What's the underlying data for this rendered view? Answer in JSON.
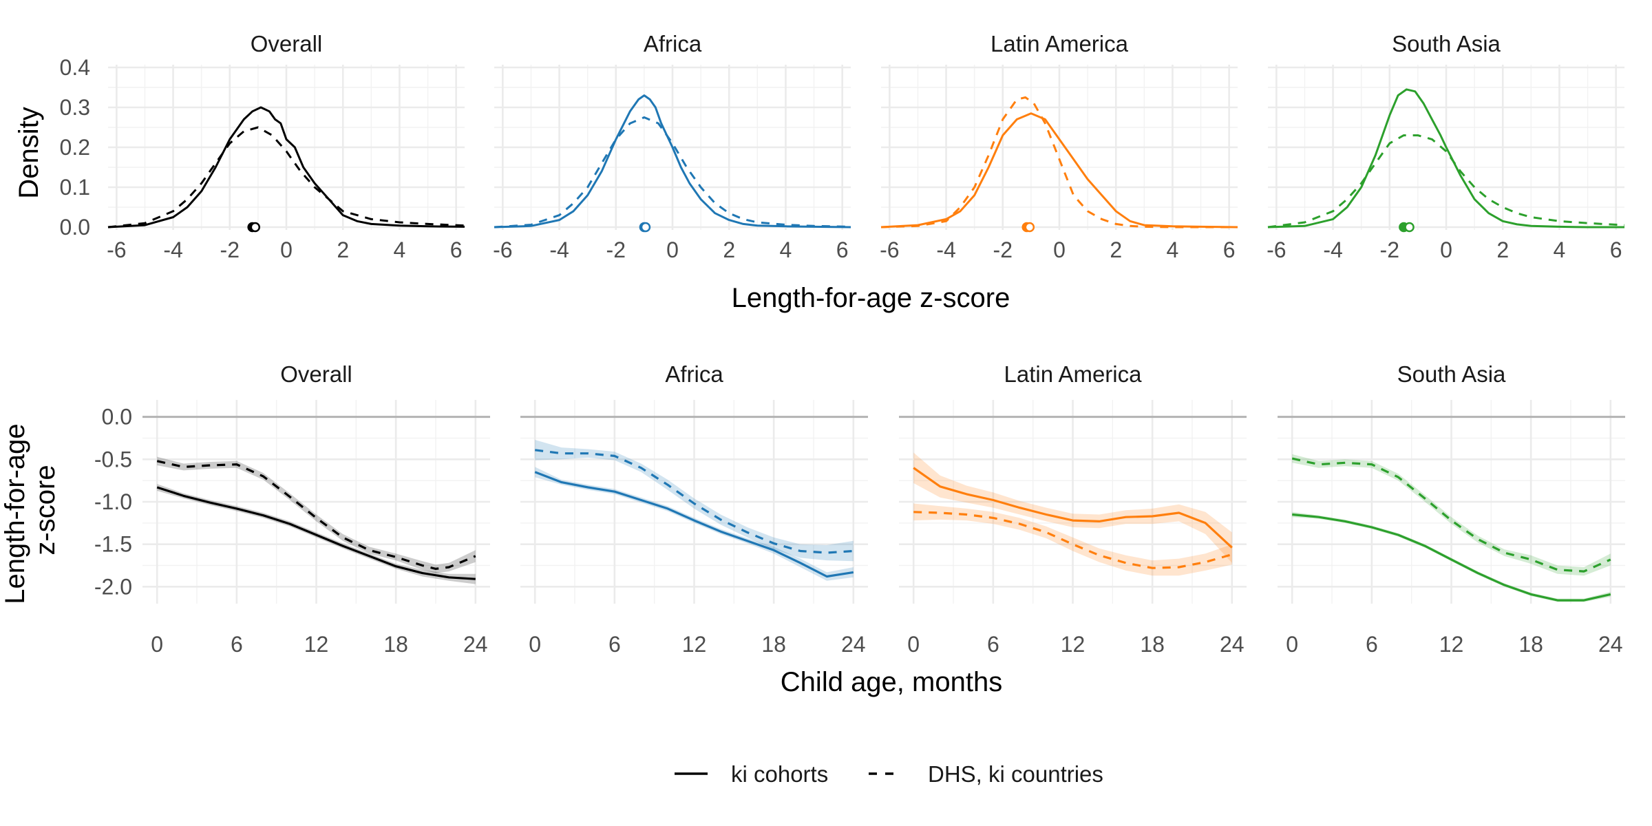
{
  "colors": {
    "Overall": "#000000",
    "Africa": "#1f77b4",
    "Latin America": "#ff7f0e",
    "South Asia": "#2ca02c"
  },
  "legend": {
    "position": "bottom",
    "items": [
      {
        "label": "ki cohorts",
        "linetype": "solid"
      },
      {
        "label": "DHS, ki countries",
        "linetype": "dashed"
      }
    ]
  },
  "top_row": {
    "xlabel": "Length-for-age z-score",
    "ylabel": "Density",
    "panels": [
      "Overall",
      "Africa",
      "Latin America",
      "South Asia"
    ]
  },
  "bottom_row": {
    "xlabel": "Child age, months",
    "ylabel_lines": [
      "Length-for-age",
      "z-score"
    ],
    "panels": [
      "Overall",
      "Africa",
      "Latin America",
      "South Asia"
    ]
  },
  "chart_data": [
    {
      "type": "line",
      "chart": "density",
      "facets": [
        "Overall",
        "Africa",
        "Latin America",
        "South Asia"
      ],
      "xlabel": "Length-for-age z-score",
      "ylabel": "Density",
      "xlim": [
        -6.3,
        6.3
      ],
      "ylim": [
        0,
        0.4
      ],
      "xticks": [
        -6,
        -4,
        -2,
        0,
        2,
        4,
        6
      ],
      "yticks": [
        0.0,
        0.1,
        0.2,
        0.3,
        0.4
      ],
      "ytick_labels": [
        "0.0",
        "0.1",
        "0.2",
        "0.3",
        "0.4"
      ],
      "grid": true,
      "series": [
        {
          "facet": "Overall",
          "name": "ki cohorts",
          "linetype": "solid",
          "x": [
            -6.3,
            -5,
            -4,
            -3.5,
            -3,
            -2.5,
            -2,
            -1.5,
            -1.2,
            -0.9,
            -0.6,
            -0.4,
            -0.2,
            0,
            0.3,
            0.6,
            1,
            1.5,
            2,
            2.5,
            3,
            4,
            5,
            6.3
          ],
          "y": [
            0,
            0.005,
            0.025,
            0.05,
            0.09,
            0.15,
            0.22,
            0.27,
            0.29,
            0.3,
            0.29,
            0.27,
            0.26,
            0.22,
            0.2,
            0.15,
            0.11,
            0.07,
            0.03,
            0.015,
            0.008,
            0.004,
            0.002,
            0.001
          ],
          "mean": -1.2
        },
        {
          "facet": "Overall",
          "name": "DHS, ki countries",
          "linetype": "dashed",
          "x": [
            -6.3,
            -5,
            -4,
            -3.5,
            -3,
            -2.5,
            -2,
            -1.5,
            -1,
            -0.5,
            0,
            0.5,
            1,
            1.5,
            2,
            2.5,
            3,
            4,
            5,
            6.3
          ],
          "y": [
            0,
            0.01,
            0.04,
            0.07,
            0.11,
            0.16,
            0.21,
            0.24,
            0.25,
            0.23,
            0.19,
            0.14,
            0.1,
            0.07,
            0.04,
            0.03,
            0.02,
            0.012,
            0.008,
            0.004
          ],
          "mean": -1.1
        },
        {
          "facet": "Africa",
          "name": "ki cohorts",
          "linetype": "solid",
          "x": [
            -6.3,
            -5,
            -4,
            -3.5,
            -3,
            -2.5,
            -2,
            -1.5,
            -1.2,
            -1,
            -0.8,
            -0.6,
            -0.4,
            -0.2,
            0,
            0.3,
            0.6,
            1,
            1.5,
            2,
            2.5,
            3,
            4,
            5,
            6.3
          ],
          "y": [
            0,
            0.003,
            0.018,
            0.04,
            0.08,
            0.14,
            0.22,
            0.29,
            0.32,
            0.33,
            0.32,
            0.3,
            0.26,
            0.23,
            0.2,
            0.15,
            0.11,
            0.07,
            0.035,
            0.018,
            0.008,
            0.004,
            0.002,
            0.001,
            0
          ],
          "mean": -1.0
        },
        {
          "facet": "Africa",
          "name": "DHS, ki countries",
          "linetype": "dashed",
          "x": [
            -6.3,
            -5,
            -4,
            -3.5,
            -3,
            -2.5,
            -2,
            -1.5,
            -1,
            -0.5,
            0,
            0.5,
            1,
            1.5,
            2,
            2.5,
            3,
            4,
            5,
            6.3
          ],
          "y": [
            0,
            0.006,
            0.03,
            0.06,
            0.1,
            0.16,
            0.22,
            0.26,
            0.275,
            0.26,
            0.21,
            0.15,
            0.1,
            0.06,
            0.035,
            0.02,
            0.012,
            0.006,
            0.003,
            0.001
          ],
          "mean": -0.95
        },
        {
          "facet": "Latin America",
          "name": "ki cohorts",
          "linetype": "solid",
          "x": [
            -6.3,
            -5,
            -4,
            -3.5,
            -3,
            -2.5,
            -2,
            -1.5,
            -1,
            -0.5,
            0,
            0.5,
            1,
            1.5,
            2,
            2.5,
            3,
            4,
            5,
            6.3
          ],
          "y": [
            0,
            0.005,
            0.02,
            0.04,
            0.08,
            0.15,
            0.23,
            0.27,
            0.285,
            0.27,
            0.22,
            0.17,
            0.12,
            0.08,
            0.04,
            0.015,
            0.005,
            0.002,
            0.001,
            0
          ],
          "mean": -1.15
        },
        {
          "facet": "Latin America",
          "name": "DHS, ki countries",
          "linetype": "dashed",
          "x": [
            -6.3,
            -5,
            -4,
            -3.5,
            -3,
            -2.5,
            -2,
            -1.5,
            -1.2,
            -0.9,
            -0.5,
            0,
            0.5,
            1,
            1.5,
            2,
            2.5,
            3,
            4,
            5,
            6.3
          ],
          "y": [
            0,
            0.003,
            0.015,
            0.05,
            0.1,
            0.18,
            0.27,
            0.32,
            0.325,
            0.31,
            0.26,
            0.17,
            0.08,
            0.04,
            0.02,
            0.008,
            0.003,
            0.001,
            0,
            0,
            0
          ],
          "mean": -1.05
        },
        {
          "facet": "South Asia",
          "name": "ki cohorts",
          "linetype": "solid",
          "x": [
            -6.3,
            -5,
            -4,
            -3.5,
            -3,
            -2.5,
            -2,
            -1.7,
            -1.4,
            -1.1,
            -0.8,
            -0.5,
            -0.2,
            0,
            0.5,
            1,
            1.5,
            2,
            2.5,
            3,
            4,
            5,
            6.3
          ],
          "y": [
            0,
            0.003,
            0.02,
            0.05,
            0.1,
            0.18,
            0.28,
            0.33,
            0.345,
            0.34,
            0.31,
            0.27,
            0.23,
            0.2,
            0.13,
            0.07,
            0.035,
            0.015,
            0.007,
            0.003,
            0.001,
            0,
            0
          ],
          "mean": -1.5
        },
        {
          "facet": "South Asia",
          "name": "DHS, ki countries",
          "linetype": "dashed",
          "x": [
            -6.3,
            -5,
            -4,
            -3.5,
            -3,
            -2.5,
            -2,
            -1.5,
            -1,
            -0.5,
            0,
            0.5,
            1,
            1.5,
            2,
            2.5,
            3,
            4,
            5,
            6.3
          ],
          "y": [
            0,
            0.012,
            0.04,
            0.07,
            0.11,
            0.16,
            0.21,
            0.23,
            0.23,
            0.22,
            0.19,
            0.14,
            0.1,
            0.07,
            0.05,
            0.035,
            0.025,
            0.015,
            0.01,
            0.005
          ],
          "mean": -1.3
        }
      ]
    },
    {
      "type": "line",
      "chart": "smoothed trajectory with confidence band",
      "facets": [
        "Overall",
        "Africa",
        "Latin America",
        "South Asia"
      ],
      "xlabel": "Child age, months",
      "ylabel": "Length-for-age z-score",
      "xlim": [
        -1.1,
        25.1
      ],
      "ylim": [
        -2.2,
        0.2
      ],
      "xticks": [
        0,
        6,
        12,
        18,
        24
      ],
      "yticks": [
        0.0,
        -0.5,
        -1.0,
        -1.5,
        -2.0
      ],
      "ytick_labels": [
        "0.0",
        "-0.5",
        "-1.0",
        "-1.5",
        "-2.0"
      ],
      "reference_line_y": 0,
      "grid": true,
      "series": [
        {
          "facet": "Overall",
          "name": "ki cohorts",
          "linetype": "solid",
          "x": [
            0,
            2,
            4,
            6,
            8,
            10,
            12,
            14,
            16,
            18,
            20,
            22,
            24
          ],
          "y": [
            -0.83,
            -0.93,
            -1.01,
            -1.08,
            -1.16,
            -1.26,
            -1.39,
            -1.52,
            -1.64,
            -1.76,
            -1.84,
            -1.89,
            -1.91
          ],
          "se": [
            0.04,
            0.03,
            0.03,
            0.03,
            0.03,
            0.03,
            0.03,
            0.03,
            0.03,
            0.03,
            0.04,
            0.04,
            0.06
          ]
        },
        {
          "facet": "Overall",
          "name": "DHS, ki countries",
          "linetype": "dashed",
          "x": [
            0,
            2,
            4,
            6,
            8,
            10,
            12,
            14,
            16,
            18,
            20,
            21,
            22,
            24
          ],
          "y": [
            -0.52,
            -0.59,
            -0.57,
            -0.56,
            -0.7,
            -0.94,
            -1.19,
            -1.42,
            -1.57,
            -1.65,
            -1.75,
            -1.79,
            -1.77,
            -1.64
          ],
          "se": [
            0.05,
            0.04,
            0.04,
            0.04,
            0.04,
            0.04,
            0.04,
            0.04,
            0.04,
            0.04,
            0.05,
            0.05,
            0.05,
            0.07
          ]
        },
        {
          "facet": "Africa",
          "name": "ki cohorts",
          "linetype": "solid",
          "x": [
            0,
            2,
            4,
            6,
            8,
            10,
            12,
            14,
            16,
            18,
            20,
            22,
            24
          ],
          "y": [
            -0.65,
            -0.77,
            -0.83,
            -0.88,
            -0.98,
            -1.08,
            -1.22,
            -1.35,
            -1.46,
            -1.57,
            -1.72,
            -1.88,
            -1.83
          ],
          "se": [
            0.06,
            0.03,
            0.03,
            0.03,
            0.03,
            0.03,
            0.03,
            0.03,
            0.03,
            0.04,
            0.05,
            0.05,
            0.06
          ]
        },
        {
          "facet": "Africa",
          "name": "DHS, ki countries",
          "linetype": "dashed",
          "x": [
            0,
            2,
            4,
            6,
            8,
            10,
            12,
            14,
            16,
            18,
            20,
            22,
            24
          ],
          "y": [
            -0.39,
            -0.43,
            -0.43,
            -0.46,
            -0.6,
            -0.8,
            -1.02,
            -1.21,
            -1.36,
            -1.49,
            -1.58,
            -1.6,
            -1.58
          ],
          "se": [
            0.12,
            0.07,
            0.05,
            0.05,
            0.05,
            0.06,
            0.06,
            0.06,
            0.06,
            0.07,
            0.08,
            0.09,
            0.12
          ]
        },
        {
          "facet": "Latin America",
          "name": "ki cohorts",
          "linetype": "solid",
          "x": [
            0,
            2,
            4,
            6,
            8,
            10,
            12,
            14,
            16,
            18,
            20,
            22,
            24
          ],
          "y": [
            -0.6,
            -0.82,
            -0.91,
            -0.98,
            -1.07,
            -1.15,
            -1.22,
            -1.23,
            -1.18,
            -1.17,
            -1.13,
            -1.25,
            -1.54
          ],
          "se": [
            0.18,
            0.13,
            0.1,
            0.09,
            0.08,
            0.08,
            0.08,
            0.08,
            0.08,
            0.09,
            0.1,
            0.13,
            0.18
          ]
        },
        {
          "facet": "Latin America",
          "name": "DHS, ki countries",
          "linetype": "dashed",
          "x": [
            0,
            2,
            4,
            6,
            8,
            10,
            12,
            14,
            16,
            18,
            20,
            22,
            24
          ],
          "y": [
            -1.12,
            -1.13,
            -1.15,
            -1.19,
            -1.26,
            -1.36,
            -1.5,
            -1.63,
            -1.72,
            -1.78,
            -1.77,
            -1.71,
            -1.62
          ],
          "se": [
            0.1,
            0.08,
            0.07,
            0.07,
            0.07,
            0.07,
            0.08,
            0.08,
            0.09,
            0.09,
            0.1,
            0.1,
            0.12
          ]
        },
        {
          "facet": "South Asia",
          "name": "ki cohorts",
          "linetype": "solid",
          "x": [
            0,
            2,
            4,
            6,
            8,
            10,
            12,
            14,
            16,
            18,
            20,
            22,
            24
          ],
          "y": [
            -1.15,
            -1.18,
            -1.23,
            -1.3,
            -1.39,
            -1.52,
            -1.68,
            -1.84,
            -1.98,
            -2.09,
            -2.16,
            -2.16,
            -2.09
          ],
          "se": [
            0.03,
            0.02,
            0.02,
            0.02,
            0.02,
            0.02,
            0.02,
            0.02,
            0.02,
            0.02,
            0.02,
            0.02,
            0.03
          ]
        },
        {
          "facet": "South Asia",
          "name": "DHS, ki countries",
          "linetype": "dashed",
          "x": [
            0,
            2,
            4,
            6,
            8,
            10,
            12,
            14,
            16,
            18,
            20,
            22,
            24
          ],
          "y": [
            -0.49,
            -0.56,
            -0.54,
            -0.56,
            -0.71,
            -0.96,
            -1.22,
            -1.44,
            -1.6,
            -1.68,
            -1.8,
            -1.82,
            -1.68
          ],
          "se": [
            0.05,
            0.04,
            0.04,
            0.04,
            0.04,
            0.04,
            0.04,
            0.04,
            0.04,
            0.05,
            0.05,
            0.05,
            0.07
          ]
        }
      ]
    }
  ]
}
